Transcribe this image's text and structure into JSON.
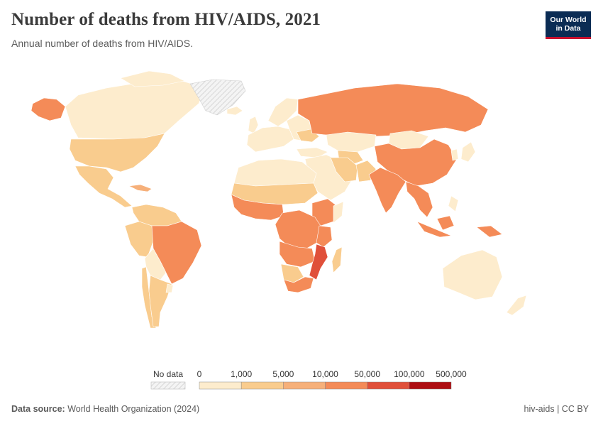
{
  "header": {
    "title": "Number of deaths from HIV/AIDS, 2021",
    "subtitle": "Annual number of deaths from HIV/AIDS."
  },
  "logo": {
    "line1": "Our World",
    "line2": "in Data"
  },
  "legend": {
    "no_data_label": "No data",
    "bins": [
      "0",
      "1,000",
      "5,000",
      "10,000",
      "50,000",
      "100,000",
      "500,000"
    ],
    "colors": [
      "#fdeccd",
      "#f9cc8e",
      "#f6b07a",
      "#f48b58",
      "#e0503a",
      "#ae0e12"
    ],
    "no_data_color": "#e9e9e9"
  },
  "footer": {
    "source_label": "Data source:",
    "source_text": "World Health Organization (2024)",
    "right_text": "hiv-aids | CC BY"
  },
  "map_data": {
    "regions": [
      {
        "name": "North America",
        "level": "1,000–5,000"
      },
      {
        "name": "Canada",
        "level": "0–1,000"
      },
      {
        "name": "Greenland",
        "level": "No data"
      },
      {
        "name": "Mexico",
        "level": "1,000–5,000"
      },
      {
        "name": "South America",
        "level": "0–1,000"
      },
      {
        "name": "Brazil",
        "level": "10,000–50,000"
      },
      {
        "name": "Europe",
        "level": "0–1,000"
      },
      {
        "name": "Russia",
        "level": "10,000–50,000"
      },
      {
        "name": "China",
        "level": "10,000–50,000"
      },
      {
        "name": "India",
        "level": "10,000–50,000"
      },
      {
        "name": "Southeast Asia",
        "level": "10,000–50,000"
      },
      {
        "name": "West Africa",
        "level": "10,000–50,000"
      },
      {
        "name": "Sahel",
        "level": "1,000–5,000"
      },
      {
        "name": "North Africa",
        "level": "0–1,000"
      },
      {
        "name": "East Africa",
        "level": "10,000–50,000"
      },
      {
        "name": "Central Africa",
        "level": "10,000–50,000"
      },
      {
        "name": "Mozambique",
        "level": "50,000–100,000"
      },
      {
        "name": "South Africa",
        "level": "10,000–50,000"
      },
      {
        "name": "Middle East",
        "level": "0–1,000"
      },
      {
        "name": "Australia",
        "level": "0–1,000"
      }
    ]
  }
}
